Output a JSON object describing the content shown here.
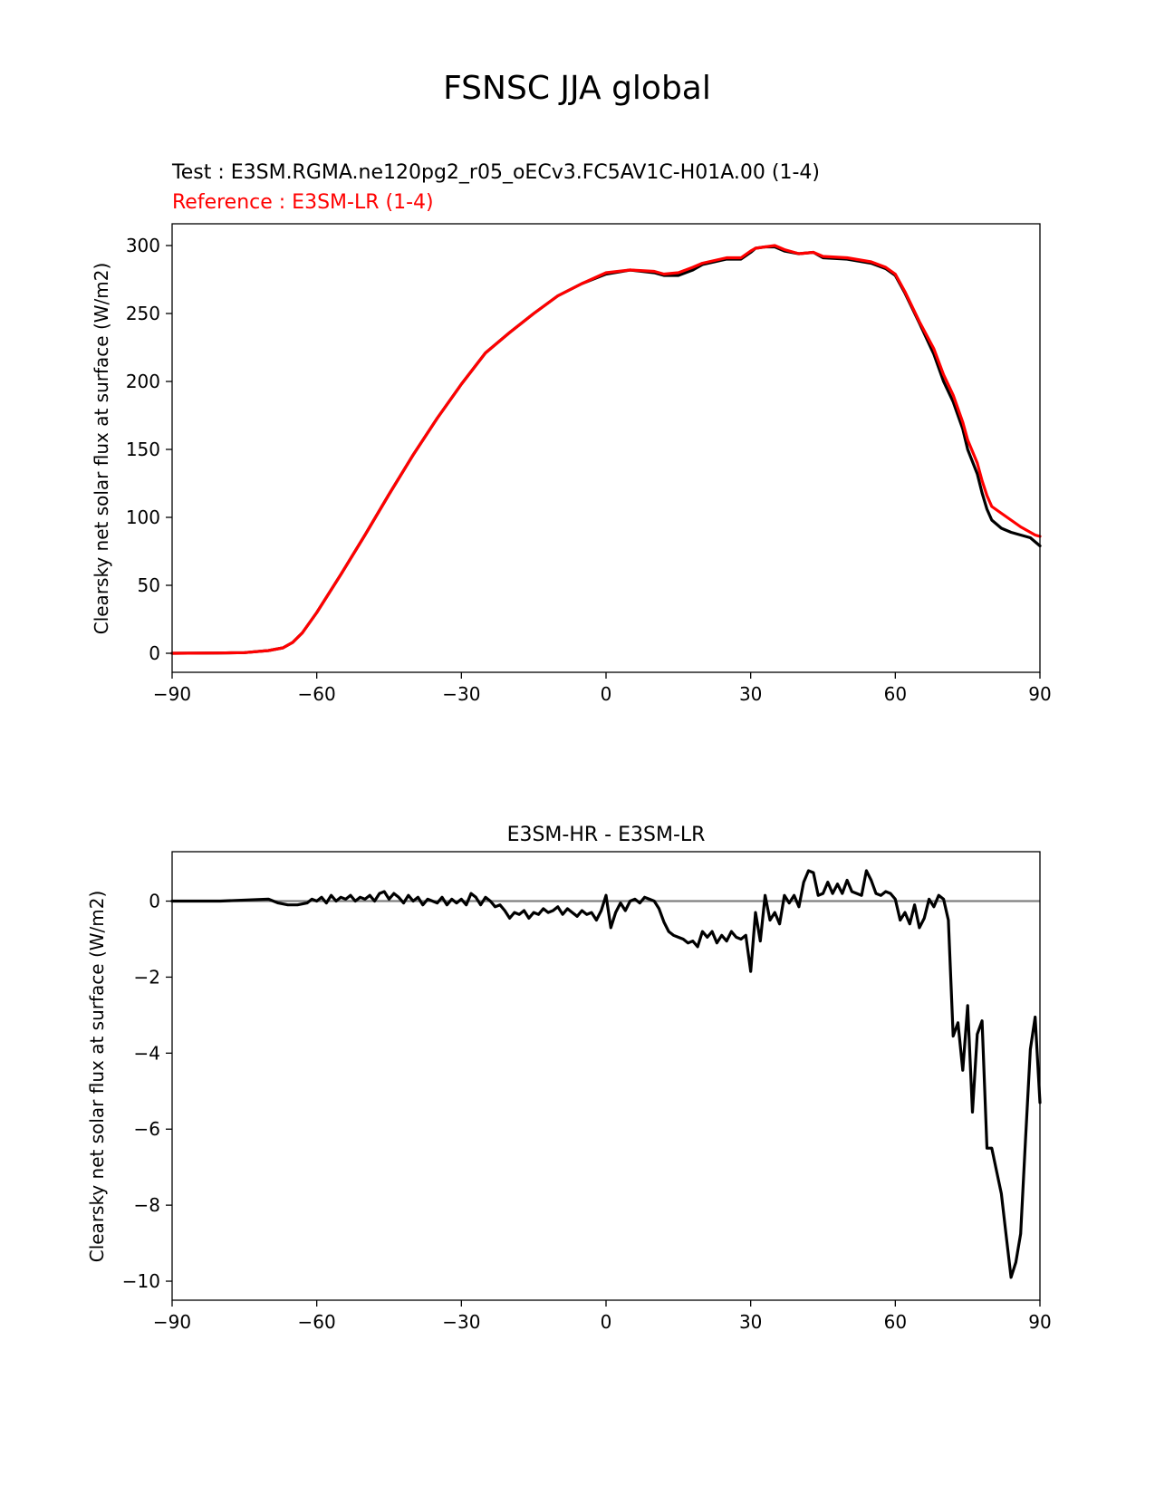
{
  "figure": {
    "title": "FSNSC JJA global"
  },
  "chart_data": [
    {
      "type": "line",
      "test_label": "Test : E3SM.RGMA.ne120pg2_r05_oECv3.FC5AV1C-H01A.00 (1-4)",
      "reference_label": "Reference : E3SM-LR (1-4)",
      "xlabel": "",
      "ylabel": "Clearsky net solar flux at surface (W/m2)",
      "xlim": [
        -90,
        90
      ],
      "ylim": [
        -14,
        316
      ],
      "xticks": [
        -90,
        -60,
        -30,
        0,
        30,
        60,
        90
      ],
      "xtick_labels": [
        "−90",
        "−60",
        "−30",
        "0",
        "30",
        "60",
        "90"
      ],
      "yticks": [
        0,
        50,
        100,
        150,
        200,
        250,
        300
      ],
      "ytick_labels": [
        "0",
        "50",
        "100",
        "150",
        "200",
        "250",
        "300"
      ],
      "series": [
        {
          "name": "Test",
          "color": "#000000",
          "x": [
            -90,
            -80,
            -75,
            -70,
            -67,
            -65,
            -63,
            -60,
            -55,
            -50,
            -45,
            -40,
            -35,
            -30,
            -25,
            -20,
            -15,
            -10,
            -5,
            0,
            5,
            10,
            12,
            15,
            18,
            20,
            25,
            28,
            30,
            31,
            33,
            35,
            37,
            40,
            43,
            45,
            50,
            55,
            58,
            60,
            62,
            65,
            68,
            70,
            72,
            74,
            75,
            77,
            78,
            79,
            80,
            82,
            84,
            86,
            88,
            89,
            90
          ],
          "y": [
            0,
            0.2,
            0.5,
            2,
            4,
            8,
            15,
            30,
            58,
            87,
            117,
            146,
            173,
            198,
            221,
            236,
            250,
            263,
            272,
            279,
            282,
            280,
            278,
            278,
            282,
            286,
            290,
            290,
            295,
            298,
            299,
            299,
            296,
            294,
            295,
            291,
            290,
            287,
            283,
            278,
            265,
            243,
            220,
            200,
            185,
            165,
            150,
            132,
            118,
            106,
            98,
            92,
            89,
            87,
            85,
            82,
            79
          ]
        },
        {
          "name": "Reference",
          "color": "#ff0000",
          "x": [
            -90,
            -80,
            -75,
            -70,
            -67,
            -65,
            -63,
            -60,
            -55,
            -50,
            -45,
            -40,
            -35,
            -30,
            -25,
            -20,
            -15,
            -10,
            -5,
            0,
            5,
            10,
            12,
            15,
            18,
            20,
            25,
            28,
            30,
            31,
            33,
            35,
            37,
            40,
            43,
            45,
            50,
            55,
            58,
            60,
            62,
            65,
            68,
            70,
            72,
            74,
            75,
            77,
            78,
            79,
            80,
            82,
            84,
            86,
            88,
            89,
            90
          ],
          "y": [
            0,
            0.2,
            0.5,
            2,
            4,
            8,
            15,
            30,
            58,
            87,
            117,
            146,
            173,
            198,
            221,
            236,
            250,
            263,
            272,
            280,
            282,
            281,
            279,
            280,
            284,
            287,
            291,
            291,
            296,
            298,
            299,
            300,
            297,
            294,
            295,
            292,
            291,
            288,
            284,
            279,
            266,
            244,
            224,
            205,
            190,
            170,
            157,
            140,
            127,
            116,
            108,
            103,
            98,
            93,
            89,
            87,
            86
          ]
        }
      ]
    },
    {
      "type": "line",
      "title": "E3SM-HR - E3SM-LR",
      "xlabel": "",
      "ylabel": "Clearsky net solar flux at surface (W/m2)",
      "xlim": [
        -90,
        90
      ],
      "ylim": [
        -10.5,
        1.3
      ],
      "xticks": [
        -90,
        -60,
        -30,
        0,
        30,
        60,
        90
      ],
      "xtick_labels": [
        "−90",
        "−60",
        "−30",
        "0",
        "30",
        "60",
        "90"
      ],
      "yticks": [
        0,
        -2,
        -4,
        -6,
        -8,
        -10
      ],
      "ytick_labels": [
        "0",
        "−2",
        "−4",
        "−6",
        "−8",
        "−10"
      ],
      "zero_line_color": "#808080",
      "series": [
        {
          "name": "E3SM-HR - E3SM-LR",
          "color": "#000000",
          "x": [
            -90,
            -80,
            -70,
            -68,
            -66,
            -64,
            -62,
            -61,
            -60,
            -59,
            -58,
            -57,
            -56,
            -55,
            -54,
            -53,
            -52,
            -51,
            -50,
            -49,
            -48,
            -47,
            -46,
            -45,
            -44,
            -43,
            -42,
            -41,
            -40,
            -39,
            -38,
            -37,
            -36,
            -35,
            -34,
            -33,
            -32,
            -31,
            -30,
            -29,
            -28,
            -27,
            -26,
            -25,
            -24,
            -23,
            -22,
            -21,
            -20,
            -19,
            -18,
            -17,
            -16,
            -15,
            -14,
            -13,
            -12,
            -11,
            -10,
            -9,
            -8,
            -7,
            -6,
            -5,
            -4,
            -3,
            -2,
            -1,
            0,
            1,
            2,
            3,
            4,
            5,
            6,
            7,
            8,
            9,
            10,
            11,
            12,
            13,
            14,
            15,
            16,
            17,
            18,
            19,
            20,
            21,
            22,
            23,
            24,
            25,
            26,
            27,
            28,
            29,
            30,
            31,
            32,
            33,
            34,
            35,
            36,
            37,
            38,
            39,
            40,
            41,
            42,
            43,
            44,
            45,
            46,
            47,
            48,
            49,
            50,
            51,
            52,
            53,
            54,
            55,
            56,
            57,
            58,
            59,
            60,
            61,
            62,
            63,
            64,
            65,
            66,
            67,
            68,
            69,
            70,
            71,
            72,
            73,
            74,
            75,
            76,
            77,
            78,
            79,
            80,
            81,
            82,
            83,
            84,
            85,
            86,
            87,
            88,
            89,
            90
          ],
          "y": [
            0,
            0,
            0.05,
            -0.05,
            -0.1,
            -0.1,
            -0.05,
            0.05,
            0,
            0.1,
            -0.05,
            0.15,
            0,
            0.1,
            0.05,
            0.15,
            0,
            0.1,
            0.05,
            0.15,
            0,
            0.2,
            0.25,
            0.05,
            0.2,
            0.1,
            -0.05,
            0.15,
            0,
            0.1,
            -0.1,
            0.05,
            0,
            -0.05,
            0.1,
            -0.1,
            0.05,
            -0.05,
            0.05,
            -0.1,
            0.2,
            0.1,
            -0.1,
            0.1,
            0,
            -0.15,
            -0.1,
            -0.25,
            -0.45,
            -0.3,
            -0.35,
            -0.25,
            -0.45,
            -0.3,
            -0.35,
            -0.2,
            -0.3,
            -0.25,
            -0.15,
            -0.35,
            -0.2,
            -0.3,
            -0.4,
            -0.25,
            -0.35,
            -0.3,
            -0.5,
            -0.25,
            0.15,
            -0.7,
            -0.3,
            -0.05,
            -0.25,
            0,
            0.05,
            -0.05,
            0.1,
            0.05,
            0,
            -0.2,
            -0.55,
            -0.8,
            -0.9,
            -0.95,
            -1.0,
            -1.1,
            -1.05,
            -1.2,
            -0.8,
            -0.95,
            -0.8,
            -1.1,
            -0.9,
            -1.05,
            -0.8,
            -0.95,
            -1.0,
            -0.9,
            -1.85,
            -0.3,
            -1.05,
            0.15,
            -0.5,
            -0.3,
            -0.6,
            0.15,
            -0.05,
            0.15,
            -0.15,
            0.5,
            0.8,
            0.75,
            0.15,
            0.2,
            0.5,
            0.2,
            0.45,
            0.2,
            0.55,
            0.25,
            0.2,
            0.15,
            0.8,
            0.55,
            0.2,
            0.15,
            0.25,
            0.2,
            0.05,
            -0.5,
            -0.3,
            -0.6,
            -0.1,
            -0.7,
            -0.45,
            0.05,
            -0.15,
            0.15,
            0.05,
            -0.5,
            -3.55,
            -3.2,
            -4.45,
            -2.75,
            -5.55,
            -3.5,
            -3.15,
            -6.5,
            -6.5,
            -7.1,
            -7.7,
            -8.8,
            -9.9,
            -9.5,
            -8.75,
            -6.3,
            -3.9,
            -3.05,
            -5.3
          ]
        }
      ]
    }
  ]
}
